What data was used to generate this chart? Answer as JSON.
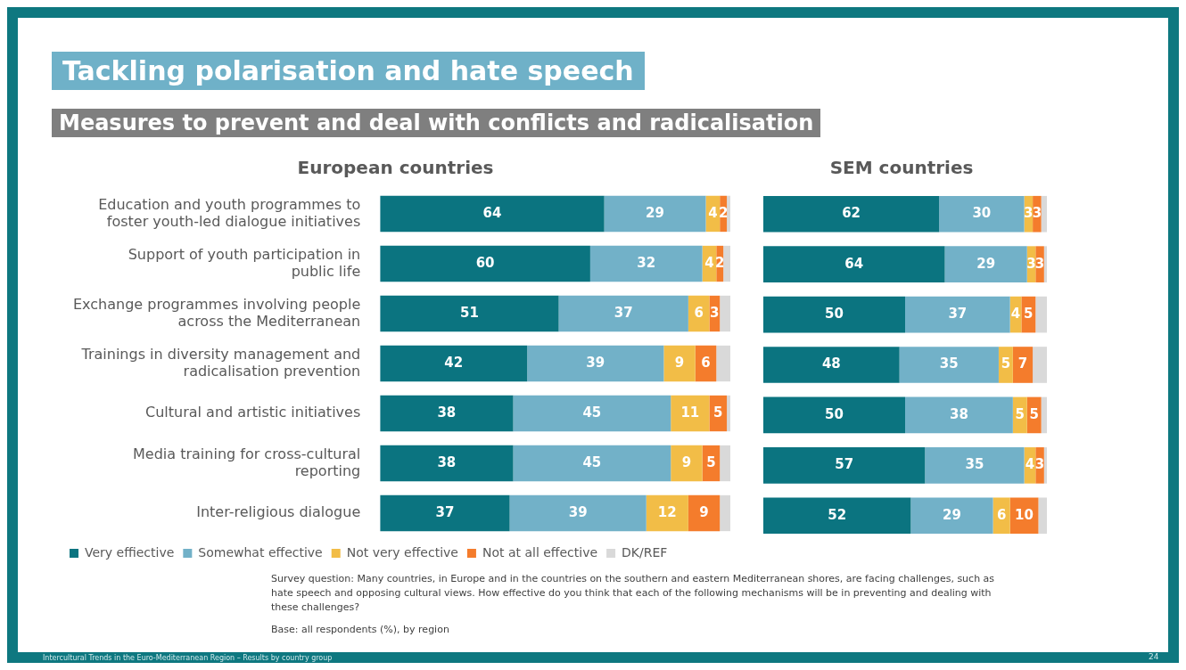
{
  "chart_data": [
    {
      "type": "other",
      "title": "Tackling polarisation and hate speech",
      "subtitle": "Measures to prevent and deal with conflicts and radicalisation",
      "annotations": [
        "Survey question: Many countries, in Europe and in the countries on the southern and eastern Mediterranean shores, are facing challenges, such as hate speech and opposing cultural views. How effective do you think that each of the following mechanisms will be in preventing and dealing with these challenges?",
        "Base: all respondents (%), by region",
        "Intercultural Trends in the Euro-Mediterranean Region – Results by country group",
        "24"
      ]
    },
    {
      "type": "bar",
      "orientation": "horizontal",
      "stacked": true,
      "title": "European countries",
      "xlim": [
        0,
        100
      ],
      "tick_labels": "y",
      "legend": "bottom",
      "categories": [
        "Education and youth programmes to foster youth-led dialogue initiatives",
        "Support of youth participation in public life",
        "Exchange programmes involving people across the Mediterranean",
        "Trainings in diversity management and radicalisation prevention",
        "Cultural and artistic initiatives",
        "Media training for cross-cultural reporting",
        "Inter-religious dialogue"
      ],
      "series": [
        {
          "name": "Very effiective",
          "color": "#0b7480",
          "values": [
            64,
            60,
            51,
            42,
            38,
            38,
            37
          ],
          "value_labels": [
            "64",
            "60",
            "51",
            "42",
            "38",
            "38",
            "37"
          ]
        },
        {
          "name": "Somewhat effective",
          "color": "#72b1c8",
          "values": [
            29,
            32,
            37,
            39,
            45,
            45,
            39
          ],
          "value_labels": [
            "29",
            "32",
            "37",
            "39",
            "45",
            "45",
            "39"
          ]
        },
        {
          "name": "Not very effective",
          "color": "#f2bd47",
          "values": [
            4,
            4,
            6,
            9,
            11,
            9,
            12
          ],
          "value_labels": [
            "4",
            "4",
            "6",
            "9",
            "11",
            "9",
            "12"
          ]
        },
        {
          "name": "Not at all effective",
          "color": "#f47c2c",
          "values": [
            2,
            2,
            3,
            6,
            5,
            5,
            9
          ],
          "value_labels": [
            "2",
            "2",
            "3",
            "6",
            "5",
            "5",
            "9"
          ]
        },
        {
          "name": "DK/REF",
          "color": "#d9d9d9",
          "values": [
            1,
            2,
            3,
            4,
            1,
            3,
            3
          ]
        }
      ]
    },
    {
      "type": "bar",
      "orientation": "horizontal",
      "stacked": true,
      "title": "SEM countries",
      "xlim": [
        0,
        100
      ],
      "tick_labels": false,
      "categories": [
        null,
        null,
        null,
        null,
        null,
        null,
        null
      ],
      "series": [
        {
          "color": "#0b7480",
          "values": [
            62,
            64,
            50,
            48,
            50,
            57,
            52
          ],
          "value_labels": [
            "62",
            "64",
            "50",
            "48",
            "50",
            "57",
            "52"
          ]
        },
        {
          "color": "#72b1c8",
          "values": [
            30,
            29,
            37,
            35,
            38,
            35,
            29
          ],
          "value_labels": [
            "30",
            "29",
            "37",
            "35",
            "38",
            "35",
            "29"
          ]
        },
        {
          "color": "#f2bd47",
          "values": [
            3,
            3,
            4,
            5,
            5,
            4,
            6
          ],
          "value_labels": [
            "3",
            "3",
            "4",
            "5",
            "5",
            "4",
            "6"
          ]
        },
        {
          "color": "#f47c2c",
          "values": [
            3,
            3,
            5,
            7,
            5,
            3,
            10
          ],
          "value_labels": [
            "3",
            "3",
            "5",
            "7",
            "5",
            "3",
            "10"
          ]
        },
        {
          "color": "#d9d9d9",
          "values": [
            2,
            1,
            4,
            5,
            2,
            1,
            3
          ]
        }
      ]
    }
  ]
}
